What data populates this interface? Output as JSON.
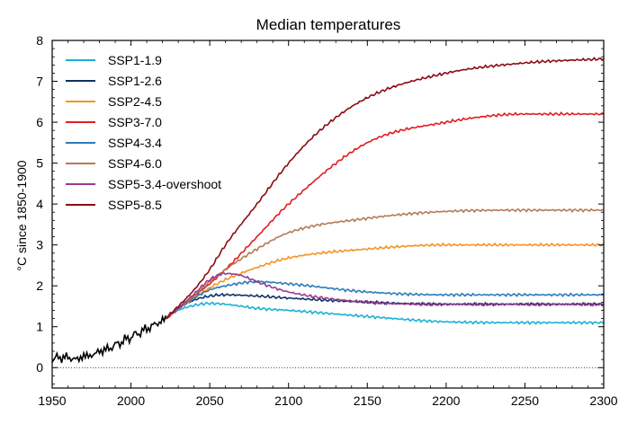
{
  "chart_data": {
    "type": "line",
    "title": "Median temperatures",
    "xlabel": "",
    "ylabel": "°C since 1850-1900",
    "xlim": [
      1950,
      2300
    ],
    "ylim": [
      -0.5,
      8
    ],
    "xticks": [
      1950,
      2000,
      2050,
      2100,
      2150,
      2200,
      2250,
      2300
    ],
    "yticks": [
      0,
      1,
      2,
      3,
      4,
      5,
      6,
      7,
      8
    ],
    "zero_line": "dotted",
    "legend_position": "top-left",
    "colors": {
      "SSP1-1.9": "#1ab0d8",
      "SSP1-2.6": "#0e3268",
      "SSP2-4.5": "#f69320",
      "SSP3-7.0": "#e01e20",
      "SSP4-3.4": "#2b7bb9",
      "SSP4-6.0": "#b57a55",
      "SSP5-3.4-overshoot": "#9a3a8e",
      "SSP5-8.5": "#8a0c12",
      "historical": "#000000"
    },
    "historical": {
      "name": "",
      "x": [
        1950,
        1955,
        1960,
        1965,
        1970,
        1975,
        1980,
        1985,
        1990,
        1995,
        2000,
        2005,
        2010,
        2015,
        2020,
        2022
      ],
      "y": [
        0.2,
        0.25,
        0.25,
        0.2,
        0.28,
        0.3,
        0.4,
        0.45,
        0.55,
        0.65,
        0.75,
        0.85,
        0.95,
        1.05,
        1.15,
        1.2
      ]
    },
    "series": [
      {
        "name": "SSP1-1.9",
        "x": [
          2022,
          2030,
          2040,
          2050,
          2060,
          2080,
          2100,
          2150,
          2200,
          2250,
          2300
        ],
        "values": [
          1.2,
          1.4,
          1.52,
          1.57,
          1.55,
          1.45,
          1.4,
          1.25,
          1.12,
          1.1,
          1.1
        ]
      },
      {
        "name": "SSP1-2.6",
        "x": [
          2022,
          2030,
          2040,
          2050,
          2060,
          2080,
          2100,
          2150,
          2200,
          2250,
          2300
        ],
        "values": [
          1.2,
          1.45,
          1.65,
          1.75,
          1.78,
          1.75,
          1.7,
          1.6,
          1.55,
          1.55,
          1.55
        ]
      },
      {
        "name": "SSP2-4.5",
        "x": [
          2022,
          2030,
          2040,
          2050,
          2060,
          2080,
          2100,
          2150,
          2200,
          2250,
          2300
        ],
        "values": [
          1.2,
          1.45,
          1.7,
          1.95,
          2.15,
          2.45,
          2.68,
          2.9,
          3.0,
          3.0,
          3.0
        ]
      },
      {
        "name": "SSP3-7.0",
        "x": [
          2022,
          2030,
          2040,
          2050,
          2060,
          2080,
          2100,
          2150,
          2200,
          2250,
          2300
        ],
        "values": [
          1.2,
          1.45,
          1.75,
          2.05,
          2.4,
          3.2,
          4.0,
          5.5,
          6.0,
          6.2,
          6.2
        ]
      },
      {
        "name": "SSP4-3.4",
        "x": [
          2022,
          2030,
          2040,
          2050,
          2060,
          2080,
          2100,
          2150,
          2200,
          2250,
          2300
        ],
        "values": [
          1.2,
          1.45,
          1.7,
          1.9,
          2.0,
          2.1,
          2.05,
          1.85,
          1.78,
          1.78,
          1.78
        ]
      },
      {
        "name": "SSP4-6.0",
        "x": [
          2022,
          2030,
          2040,
          2050,
          2060,
          2080,
          2100,
          2150,
          2200,
          2250,
          2300
        ],
        "values": [
          1.2,
          1.45,
          1.75,
          2.1,
          2.4,
          2.9,
          3.3,
          3.65,
          3.82,
          3.85,
          3.85
        ]
      },
      {
        "name": "SSP5-3.4-overshoot",
        "x": [
          2022,
          2030,
          2040,
          2050,
          2060,
          2070,
          2080,
          2100,
          2150,
          2200,
          2250,
          2300
        ],
        "values": [
          1.2,
          1.45,
          1.8,
          2.15,
          2.3,
          2.25,
          2.1,
          1.85,
          1.6,
          1.55,
          1.55,
          1.55
        ]
      },
      {
        "name": "SSP5-8.5",
        "x": [
          2022,
          2030,
          2040,
          2050,
          2060,
          2080,
          2100,
          2120,
          2150,
          2200,
          2250,
          2300
        ],
        "values": [
          1.2,
          1.5,
          1.9,
          2.4,
          3.0,
          4.0,
          5.0,
          5.8,
          6.6,
          7.2,
          7.45,
          7.55
        ]
      }
    ]
  }
}
